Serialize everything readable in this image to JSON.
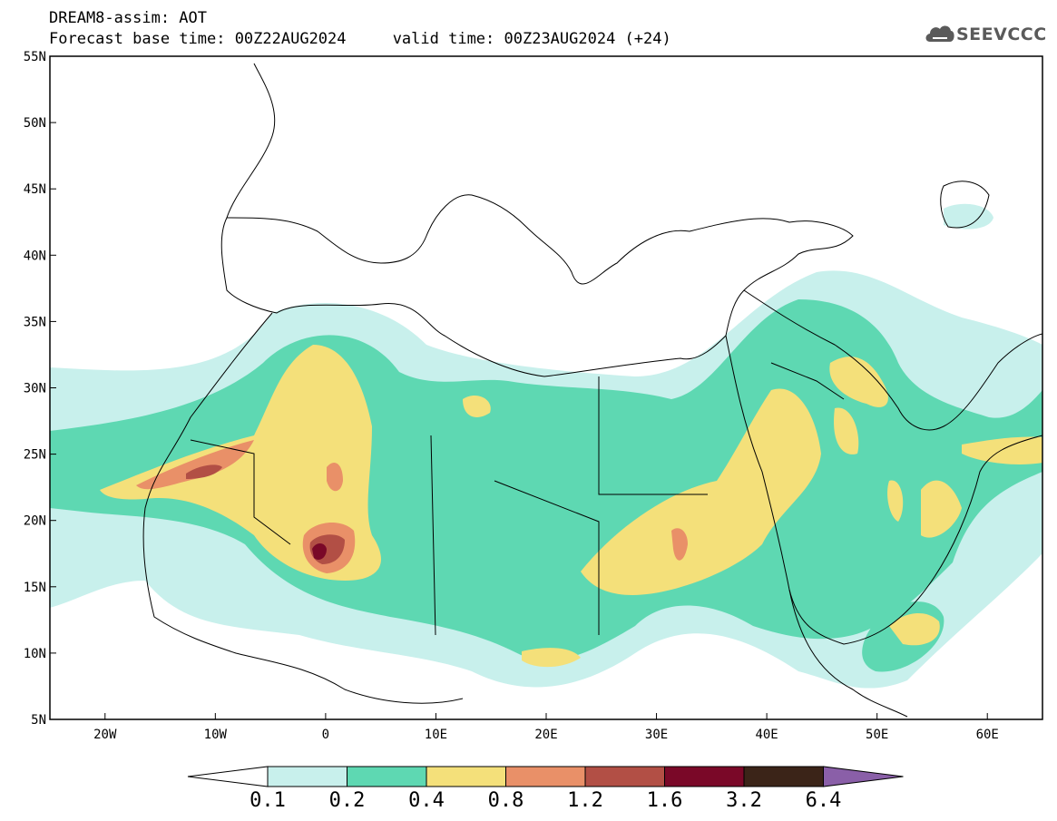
{
  "header": {
    "title_line1": "DREAM8-assim: AOT",
    "title_line2": "Forecast base time: 00Z22AUG2024     valid time: 00Z23AUG2024 (+24)",
    "logo_text": "SEEVCCC",
    "logo_icon": "cloud-icon"
  },
  "map": {
    "lat_labels": [
      "55N",
      "50N",
      "45N",
      "40N",
      "35N",
      "30N",
      "25N",
      "20N",
      "15N",
      "10N",
      "5N"
    ],
    "lon_labels": [
      "20W",
      "10W",
      "0",
      "10E",
      "20E",
      "30E",
      "40E",
      "50E",
      "60E"
    ],
    "lat_range": [
      5,
      55
    ],
    "lon_range": [
      -25,
      65
    ],
    "grid": false
  },
  "colorbar": {
    "tick_labels": [
      "0.1",
      "0.2",
      "0.4",
      "0.8",
      "1.2",
      "1.6",
      "3.2",
      "6.4"
    ],
    "colors": [
      "#c8f0ec",
      "#5ed8b2",
      "#f4e07a",
      "#e99068",
      "#b24f45",
      "#7a0828",
      "#3b2418",
      "#8a5fa8"
    ],
    "extend": "both"
  }
}
